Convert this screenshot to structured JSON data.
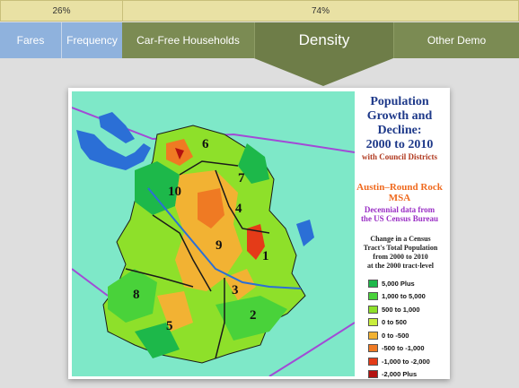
{
  "progress": {
    "left_label": "26%",
    "right_label": "74%",
    "left_value": 26,
    "right_value": 74
  },
  "tabs": [
    {
      "label": "Fares",
      "style": "blue"
    },
    {
      "label": "Frequency",
      "style": "blue"
    },
    {
      "label": "Car-Free Households",
      "style": "olive"
    },
    {
      "label": "Density",
      "style": "active"
    },
    {
      "label": "Other Demo",
      "style": "olive"
    }
  ],
  "map": {
    "title": "Population Growth and Decline: 2000 to 2010",
    "title_lines": [
      "Population",
      "Growth and",
      "Decline:",
      "2000 to 2010"
    ],
    "subtitle": "with Council Districts",
    "msa_lines": [
      "Austin–Round Rock",
      "MSA"
    ],
    "source_lines": [
      "Decennial data from",
      "the US Census Bureau"
    ],
    "change_lines": [
      "Change in a Census",
      "Tract's Total Population",
      "from 2000 to 2010",
      "at the 2000 tract-level"
    ],
    "legend": [
      {
        "label": "5,000 Plus",
        "color": "#1db84a"
      },
      {
        "label": "1,000 to 5,000",
        "color": "#49d23a"
      },
      {
        "label": "500 to 1,000",
        "color": "#8ee02a"
      },
      {
        "label": "0 to 500",
        "color": "#c9ee3c"
      },
      {
        "label": "0 to -500",
        "color": "#f2b233"
      },
      {
        "label": "-500 to -1,000",
        "color": "#ef7a23"
      },
      {
        "label": "-1,000 to -2,000",
        "color": "#e43b18"
      },
      {
        "label": "-2,000 Plus",
        "color": "#b3110f"
      }
    ],
    "districts": [
      "1",
      "2",
      "3",
      "4",
      "5",
      "6",
      "7",
      "8",
      "9",
      "10"
    ],
    "colors": {
      "water": "#2b6fd6",
      "background": "#7ee8c8",
      "boundary": "#a24ad6",
      "district_line": "#1a1a1a"
    }
  }
}
